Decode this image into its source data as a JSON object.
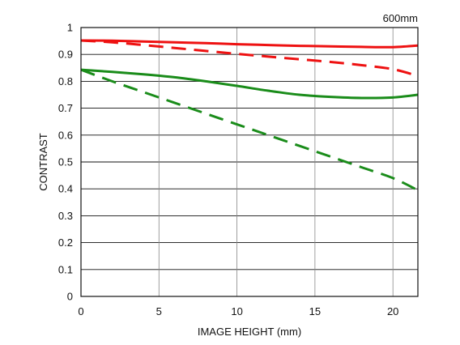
{
  "chart_data": {
    "type": "line",
    "annotation": "600mm",
    "xlabel": "IMAGE HEIGHT (mm)",
    "ylabel": "CONTRAST",
    "xlim": [
      0,
      21.6
    ],
    "ylim": [
      0,
      1
    ],
    "x_ticks": [
      0,
      5,
      10,
      15,
      20
    ],
    "y_ticks": [
      0,
      0.1,
      0.2,
      0.3,
      0.4,
      0.5,
      0.6,
      0.7,
      0.8,
      0.9,
      1
    ],
    "y_tick_labels": [
      "0",
      "0.1",
      "0.2",
      "0.3",
      "0.4",
      "0.5",
      "0.6",
      "0.7",
      "0.8",
      "0.9",
      "1"
    ],
    "x_tick_labels": [
      "0",
      "5",
      "10",
      "15",
      "20"
    ],
    "grid": true,
    "legend": "none",
    "series": [
      {
        "color": "#ee1111",
        "dash": "solid",
        "x": [
          0,
          2,
          4,
          6,
          8,
          10,
          12,
          14,
          16,
          18,
          20,
          21.6
        ],
        "y": [
          0.952,
          0.951,
          0.948,
          0.945,
          0.942,
          0.938,
          0.935,
          0.932,
          0.93,
          0.928,
          0.927,
          0.933
        ]
      },
      {
        "color": "#ee1111",
        "dash": "dashed",
        "x": [
          0,
          2,
          4,
          6,
          8,
          10,
          12,
          14,
          16,
          18,
          20,
          21.6
        ],
        "y": [
          0.952,
          0.945,
          0.935,
          0.924,
          0.913,
          0.902,
          0.892,
          0.882,
          0.872,
          0.86,
          0.845,
          0.82
        ]
      },
      {
        "color": "#1a8c1a",
        "dash": "solid",
        "x": [
          0,
          2,
          4,
          6,
          8,
          10,
          12,
          14,
          16,
          18,
          20,
          21.6
        ],
        "y": [
          0.843,
          0.835,
          0.826,
          0.815,
          0.8,
          0.783,
          0.765,
          0.75,
          0.742,
          0.738,
          0.74,
          0.75
        ]
      },
      {
        "color": "#1a8c1a",
        "dash": "dashed",
        "x": [
          0,
          2,
          4,
          6,
          8,
          10,
          12,
          14,
          16,
          18,
          20,
          21.6
        ],
        "y": [
          0.843,
          0.8,
          0.76,
          0.72,
          0.68,
          0.64,
          0.6,
          0.56,
          0.52,
          0.48,
          0.44,
          0.395
        ]
      }
    ]
  }
}
